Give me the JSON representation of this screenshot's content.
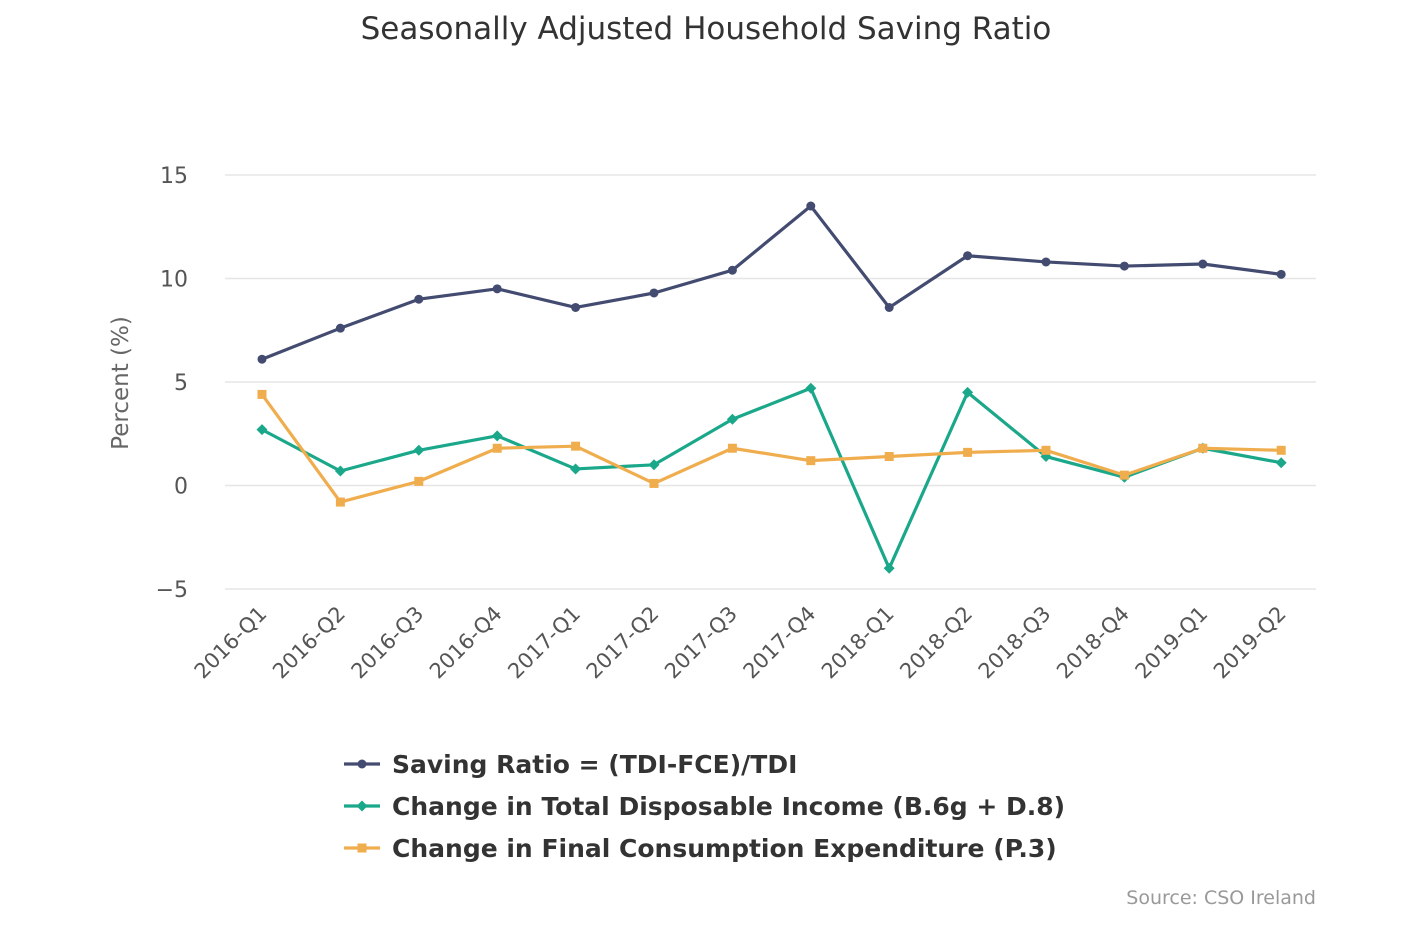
{
  "chart_data": {
    "type": "line",
    "title": "Seasonally Adjusted Household Saving Ratio",
    "ylabel": "Percent (%)",
    "xlabel": "",
    "ylim": [
      -5,
      15
    ],
    "yticks": [
      15,
      10,
      5,
      0,
      -5
    ],
    "ytick_labels": [
      "15",
      "10",
      "5",
      "0",
      "−5"
    ],
    "grid": true,
    "legend_position": "bottom-left",
    "categories": [
      "2016-Q1",
      "2016-Q2",
      "2016-Q3",
      "2016-Q4",
      "2017-Q1",
      "2017-Q2",
      "2017-Q3",
      "2017-Q4",
      "2018-Q1",
      "2018-Q2",
      "2018-Q3",
      "2018-Q4",
      "2019-Q1",
      "2019-Q2"
    ],
    "series": [
      {
        "name": "Saving Ratio = (TDI-FCE)/TDI",
        "color": "#434c70",
        "marker": "circle",
        "values": [
          6.1,
          7.6,
          9.0,
          9.5,
          8.6,
          9.3,
          10.4,
          13.5,
          8.6,
          11.1,
          10.8,
          10.6,
          10.7,
          10.2
        ]
      },
      {
        "name": "Change in Total Disposable Income (B.6g + D.8)",
        "color": "#1ba88a",
        "marker": "diamond",
        "values": [
          2.7,
          0.7,
          1.7,
          2.4,
          0.8,
          1.0,
          3.2,
          4.7,
          -4.0,
          4.5,
          1.4,
          0.4,
          1.8,
          1.1
        ]
      },
      {
        "name": "Change in Final Consumption Expenditure (P.3)",
        "color": "#f0ad4e",
        "marker": "square",
        "values": [
          4.4,
          -0.8,
          0.2,
          1.8,
          1.9,
          0.1,
          1.8,
          1.2,
          1.4,
          1.6,
          1.7,
          0.5,
          1.8,
          1.7
        ]
      }
    ],
    "source": "Source: CSO Ireland"
  }
}
